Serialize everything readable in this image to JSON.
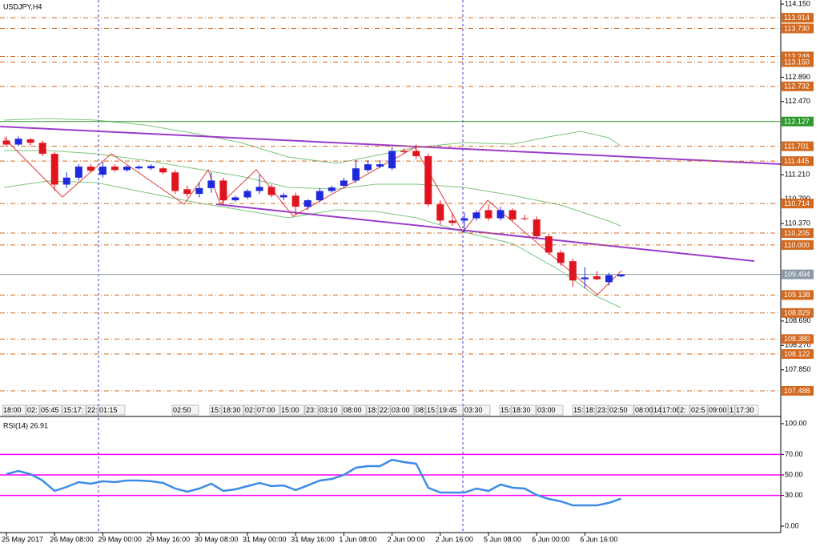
{
  "chart_data": [
    {
      "type": "candlestick",
      "title": "USDJPY,H4",
      "categories": [
        "25 May 2017",
        null,
        null,
        null,
        "26 May 08:00",
        null,
        null,
        null,
        "29 May 00:00",
        null,
        null,
        null,
        "29 May 16:00",
        null,
        null,
        null,
        "30 May 08:00",
        null,
        null,
        null,
        "31 May 00:00",
        null,
        null,
        null,
        "31 May 16:00",
        null,
        null,
        null,
        "1 Jun 08:00",
        null,
        null,
        null,
        "2 Jun 00:00",
        null,
        null,
        null,
        "2 Jun 16:00",
        null,
        null,
        null,
        "5 Jun 08:00",
        null,
        null,
        null,
        "6 Jun 00:00",
        null,
        null,
        null,
        "6 Jun 16:00",
        null,
        null,
        null
      ],
      "open": [
        111.8,
        111.73,
        111.82,
        111.76,
        111.57,
        111.04,
        111.16,
        111.35,
        111.21,
        111.35,
        111.29,
        111.32,
        111.32,
        111.32,
        111.25,
        110.96,
        110.88,
        110.98,
        111.11,
        110.77,
        110.82,
        110.93,
        111.0,
        110.82,
        110.85,
        110.66,
        110.77,
        110.93,
        111.02,
        111.11,
        111.29,
        111.35,
        111.32,
        111.62,
        111.62,
        111.53,
        110.7,
        110.42,
        110.42,
        110.46,
        110.6,
        110.46,
        110.6,
        110.46,
        110.44,
        110.15,
        109.87,
        109.72,
        109.41,
        109.46,
        109.36,
        109.46
      ],
      "high": [
        111.87,
        111.87,
        111.84,
        111.8,
        111.6,
        111.25,
        111.39,
        111.39,
        111.43,
        111.39,
        111.37,
        111.37,
        111.39,
        111.35,
        111.29,
        111.02,
        111.07,
        111.25,
        111.16,
        110.85,
        110.96,
        111.21,
        111.04,
        110.9,
        110.9,
        110.79,
        110.98,
        111.02,
        111.16,
        111.46,
        111.46,
        111.46,
        111.69,
        111.66,
        111.73,
        111.57,
        110.77,
        110.56,
        110.56,
        110.6,
        110.7,
        110.66,
        110.63,
        110.52,
        110.49,
        110.19,
        109.91,
        109.77,
        109.62,
        109.55,
        109.52,
        109.5
      ],
      "low": [
        111.69,
        111.71,
        111.71,
        111.53,
        110.93,
        110.98,
        111.11,
        111.25,
        111.16,
        111.26,
        111.26,
        111.3,
        111.29,
        111.22,
        110.88,
        110.82,
        110.82,
        110.9,
        110.7,
        110.74,
        110.79,
        110.88,
        110.82,
        110.77,
        110.52,
        110.6,
        110.74,
        110.9,
        110.99,
        111.07,
        111.25,
        111.32,
        111.29,
        111.57,
        111.48,
        110.66,
        110.35,
        110.33,
        110.21,
        110.42,
        110.42,
        110.42,
        110.41,
        110.42,
        110.1,
        109.83,
        109.64,
        109.28,
        109.25,
        109.39,
        109.3,
        109.44
      ],
      "close": [
        111.73,
        111.83,
        111.76,
        111.57,
        111.04,
        111.16,
        111.35,
        111.28,
        111.35,
        111.29,
        111.35,
        111.35,
        111.36,
        111.25,
        110.93,
        110.88,
        110.98,
        111.11,
        110.77,
        110.82,
        110.93,
        111.0,
        110.86,
        110.86,
        110.66,
        110.77,
        110.93,
        110.99,
        111.11,
        111.32,
        111.39,
        111.39,
        111.62,
        111.6,
        111.53,
        110.7,
        110.42,
        110.38,
        110.46,
        110.56,
        110.46,
        110.6,
        110.44,
        110.45,
        110.15,
        109.87,
        109.69,
        109.39,
        109.44,
        109.41,
        109.48,
        109.49
      ],
      "up_color": "#1e28dc",
      "down_color": "#e0141e",
      "ylim": [
        107.06,
        114.22
      ],
      "yticks": [
        {
          "value": 114.15,
          "label": "114.150"
        },
        {
          "value": 112.89,
          "label": "112.890"
        },
        {
          "value": 112.47,
          "label": "112.470"
        },
        {
          "value": 111.21,
          "label": "111.210"
        },
        {
          "value": 110.79,
          "label": "110.790"
        },
        {
          "value": 110.37,
          "label": "110.370"
        },
        {
          "value": 108.69,
          "label": "108.690"
        },
        {
          "value": 108.27,
          "label": "108.270"
        },
        {
          "value": 107.85,
          "label": "107.850"
        }
      ],
      "levels": [
        {
          "value": 113.914,
          "label": "113.914",
          "color": "#d2691e"
        },
        {
          "value": 113.73,
          "label": "113.730",
          "color": "#d2691e"
        },
        {
          "value": 113.248,
          "label": "113.248",
          "color": "#d2691e"
        },
        {
          "value": 113.15,
          "label": "113.150",
          "color": "#d2691e"
        },
        {
          "value": 112.732,
          "label": "112.732",
          "color": "#d2691e"
        },
        {
          "value": 112.127,
          "label": "112.127",
          "color": "#2e9b2e"
        },
        {
          "value": 111.701,
          "label": "111.701",
          "color": "#d2691e"
        },
        {
          "value": 111.445,
          "label": "111.445",
          "color": "#d2691e"
        },
        {
          "value": 110.714,
          "label": "110.714",
          "color": "#d2691e"
        },
        {
          "value": 110.205,
          "label": "110.205",
          "color": "#d2691e"
        },
        {
          "value": 110.0,
          "label": "110.000",
          "color": "#d2691e"
        },
        {
          "value": 109.494,
          "label": "109.494",
          "color": "#8c9aa8"
        },
        {
          "value": 109.138,
          "label": "109.138",
          "color": "#d2691e"
        },
        {
          "value": 108.829,
          "label": "108.829",
          "color": "#d2691e"
        },
        {
          "value": 108.38,
          "label": "108.380",
          "color": "#d2691e"
        },
        {
          "value": 108.122,
          "label": "108.122",
          "color": "#d2691e"
        },
        {
          "value": 107.488,
          "label": "107.488",
          "color": "#d2691e"
        }
      ],
      "time_markers": [
        "18:00",
        "02:",
        "05:45",
        "15:17:",
        "22:",
        "01:15",
        "02:50",
        "15:",
        "18:30",
        "02:",
        "07:00",
        "15:00",
        "23:",
        "03:10",
        "08:00",
        "18:",
        "22:",
        "03:00",
        "08:",
        "15:",
        "19:45",
        "03:30",
        "15:",
        "18:30",
        "03:00",
        "15:",
        "18:",
        "23:",
        "02:50",
        "08:00",
        "14:",
        "17:00",
        "2:",
        "02:5",
        "09:00",
        "1",
        "17:30"
      ]
    },
    {
      "type": "line",
      "title": "RSI(14) 26.91",
      "color": "#3c8ce6",
      "values": [
        50.8,
        53.9,
        50.8,
        44.5,
        34.4,
        38.3,
        43.0,
        41.4,
        43.8,
        43.0,
        44.5,
        44.5,
        43.8,
        42.2,
        36.7,
        33.6,
        36.7,
        41.4,
        34.4,
        35.9,
        39.1,
        42.2,
        39.1,
        39.8,
        35.2,
        39.8,
        44.5,
        46.1,
        50.0,
        57.0,
        58.6,
        58.6,
        64.8,
        62.5,
        60.9,
        37.5,
        32.8,
        32.8,
        32.8,
        36.7,
        34.4,
        40.6,
        37.5,
        36.7,
        30.5,
        26.6,
        24.2,
        20.3,
        20.3,
        20.3,
        22.7,
        26.9
      ],
      "ylim": [
        0,
        100
      ],
      "yticks": [
        {
          "value": 100,
          "label": "100.00"
        },
        {
          "value": 70,
          "label": "70.00"
        },
        {
          "value": 50,
          "label": "50.00"
        },
        {
          "value": 30,
          "label": "30.00"
        },
        {
          "value": 0,
          "label": "0.00"
        }
      ],
      "levels": [
        70,
        50,
        30
      ],
      "level_color": "#ff00ff"
    }
  ]
}
